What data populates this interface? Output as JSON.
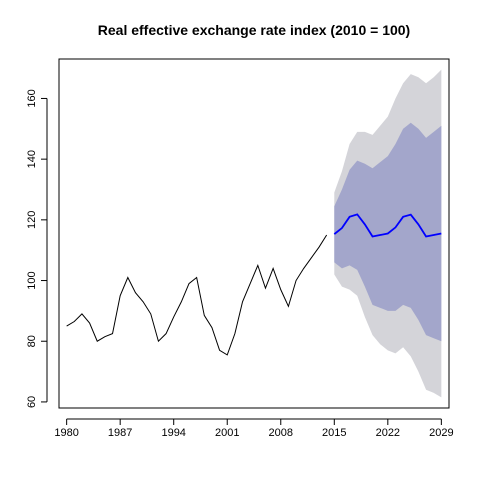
{
  "chart_data": {
    "type": "line",
    "title": "Real effective exchange rate index (2010 = 100)",
    "xlabel": "",
    "ylabel": "",
    "xlim": [
      1979,
      2030
    ],
    "ylim": [
      58,
      173
    ],
    "x_ticks": [
      1980,
      1987,
      1994,
      2001,
      2008,
      2015,
      2022,
      2029
    ],
    "y_ticks": [
      60,
      80,
      100,
      120,
      140,
      160
    ],
    "grid": false,
    "legend": "none",
    "colors": {
      "history": "#000000",
      "forecast": "#0000ff",
      "band_80": "#a3a6cb",
      "band_95": "#d4d4d9"
    },
    "history": {
      "x": [
        1980,
        1981,
        1982,
        1983,
        1984,
        1985,
        1986,
        1987,
        1988,
        1989,
        1990,
        1991,
        1992,
        1993,
        1994,
        1995,
        1996,
        1997,
        1998,
        1999,
        2000,
        2001,
        2002,
        2003,
        2004,
        2005,
        2006,
        2007,
        2008,
        2009,
        2010,
        2011,
        2012,
        2013,
        2014
      ],
      "y": [
        85,
        86.5,
        89,
        86,
        80,
        81.5,
        82.5,
        95,
        101,
        96,
        93,
        89,
        80,
        82.5,
        88,
        93,
        99,
        101,
        88.5,
        84.5,
        77,
        75.5,
        82.5,
        93,
        99,
        105,
        97.5,
        104,
        97,
        91.5,
        100,
        104,
        107.5,
        111,
        115
      ]
    },
    "forecast": {
      "x": [
        2015,
        2016,
        2017,
        2018,
        2019,
        2020,
        2021,
        2022,
        2023,
        2024,
        2025,
        2026,
        2027,
        2028,
        2029
      ],
      "mean": [
        115.3,
        117.3,
        121,
        121.8,
        118.5,
        114.5,
        115,
        115.5,
        117.5,
        121,
        121.7,
        118.5,
        114.5,
        115,
        115.5
      ],
      "lo80": [
        106,
        104,
        105,
        103.5,
        98,
        92,
        91,
        90,
        90,
        92,
        91,
        87,
        82,
        81,
        80
      ],
      "hi80": [
        124.5,
        130,
        136.5,
        139.5,
        138.5,
        137,
        139,
        141,
        145,
        150,
        152,
        150,
        147,
        149,
        151
      ],
      "lo95": [
        102,
        98,
        97,
        95,
        88,
        82,
        79,
        77,
        76,
        78,
        75,
        70,
        64,
        63,
        61.5
      ],
      "hi95": [
        129,
        136,
        145,
        149,
        149,
        148,
        151,
        154,
        160,
        165,
        168,
        167,
        165,
        167,
        169.5
      ]
    }
  }
}
